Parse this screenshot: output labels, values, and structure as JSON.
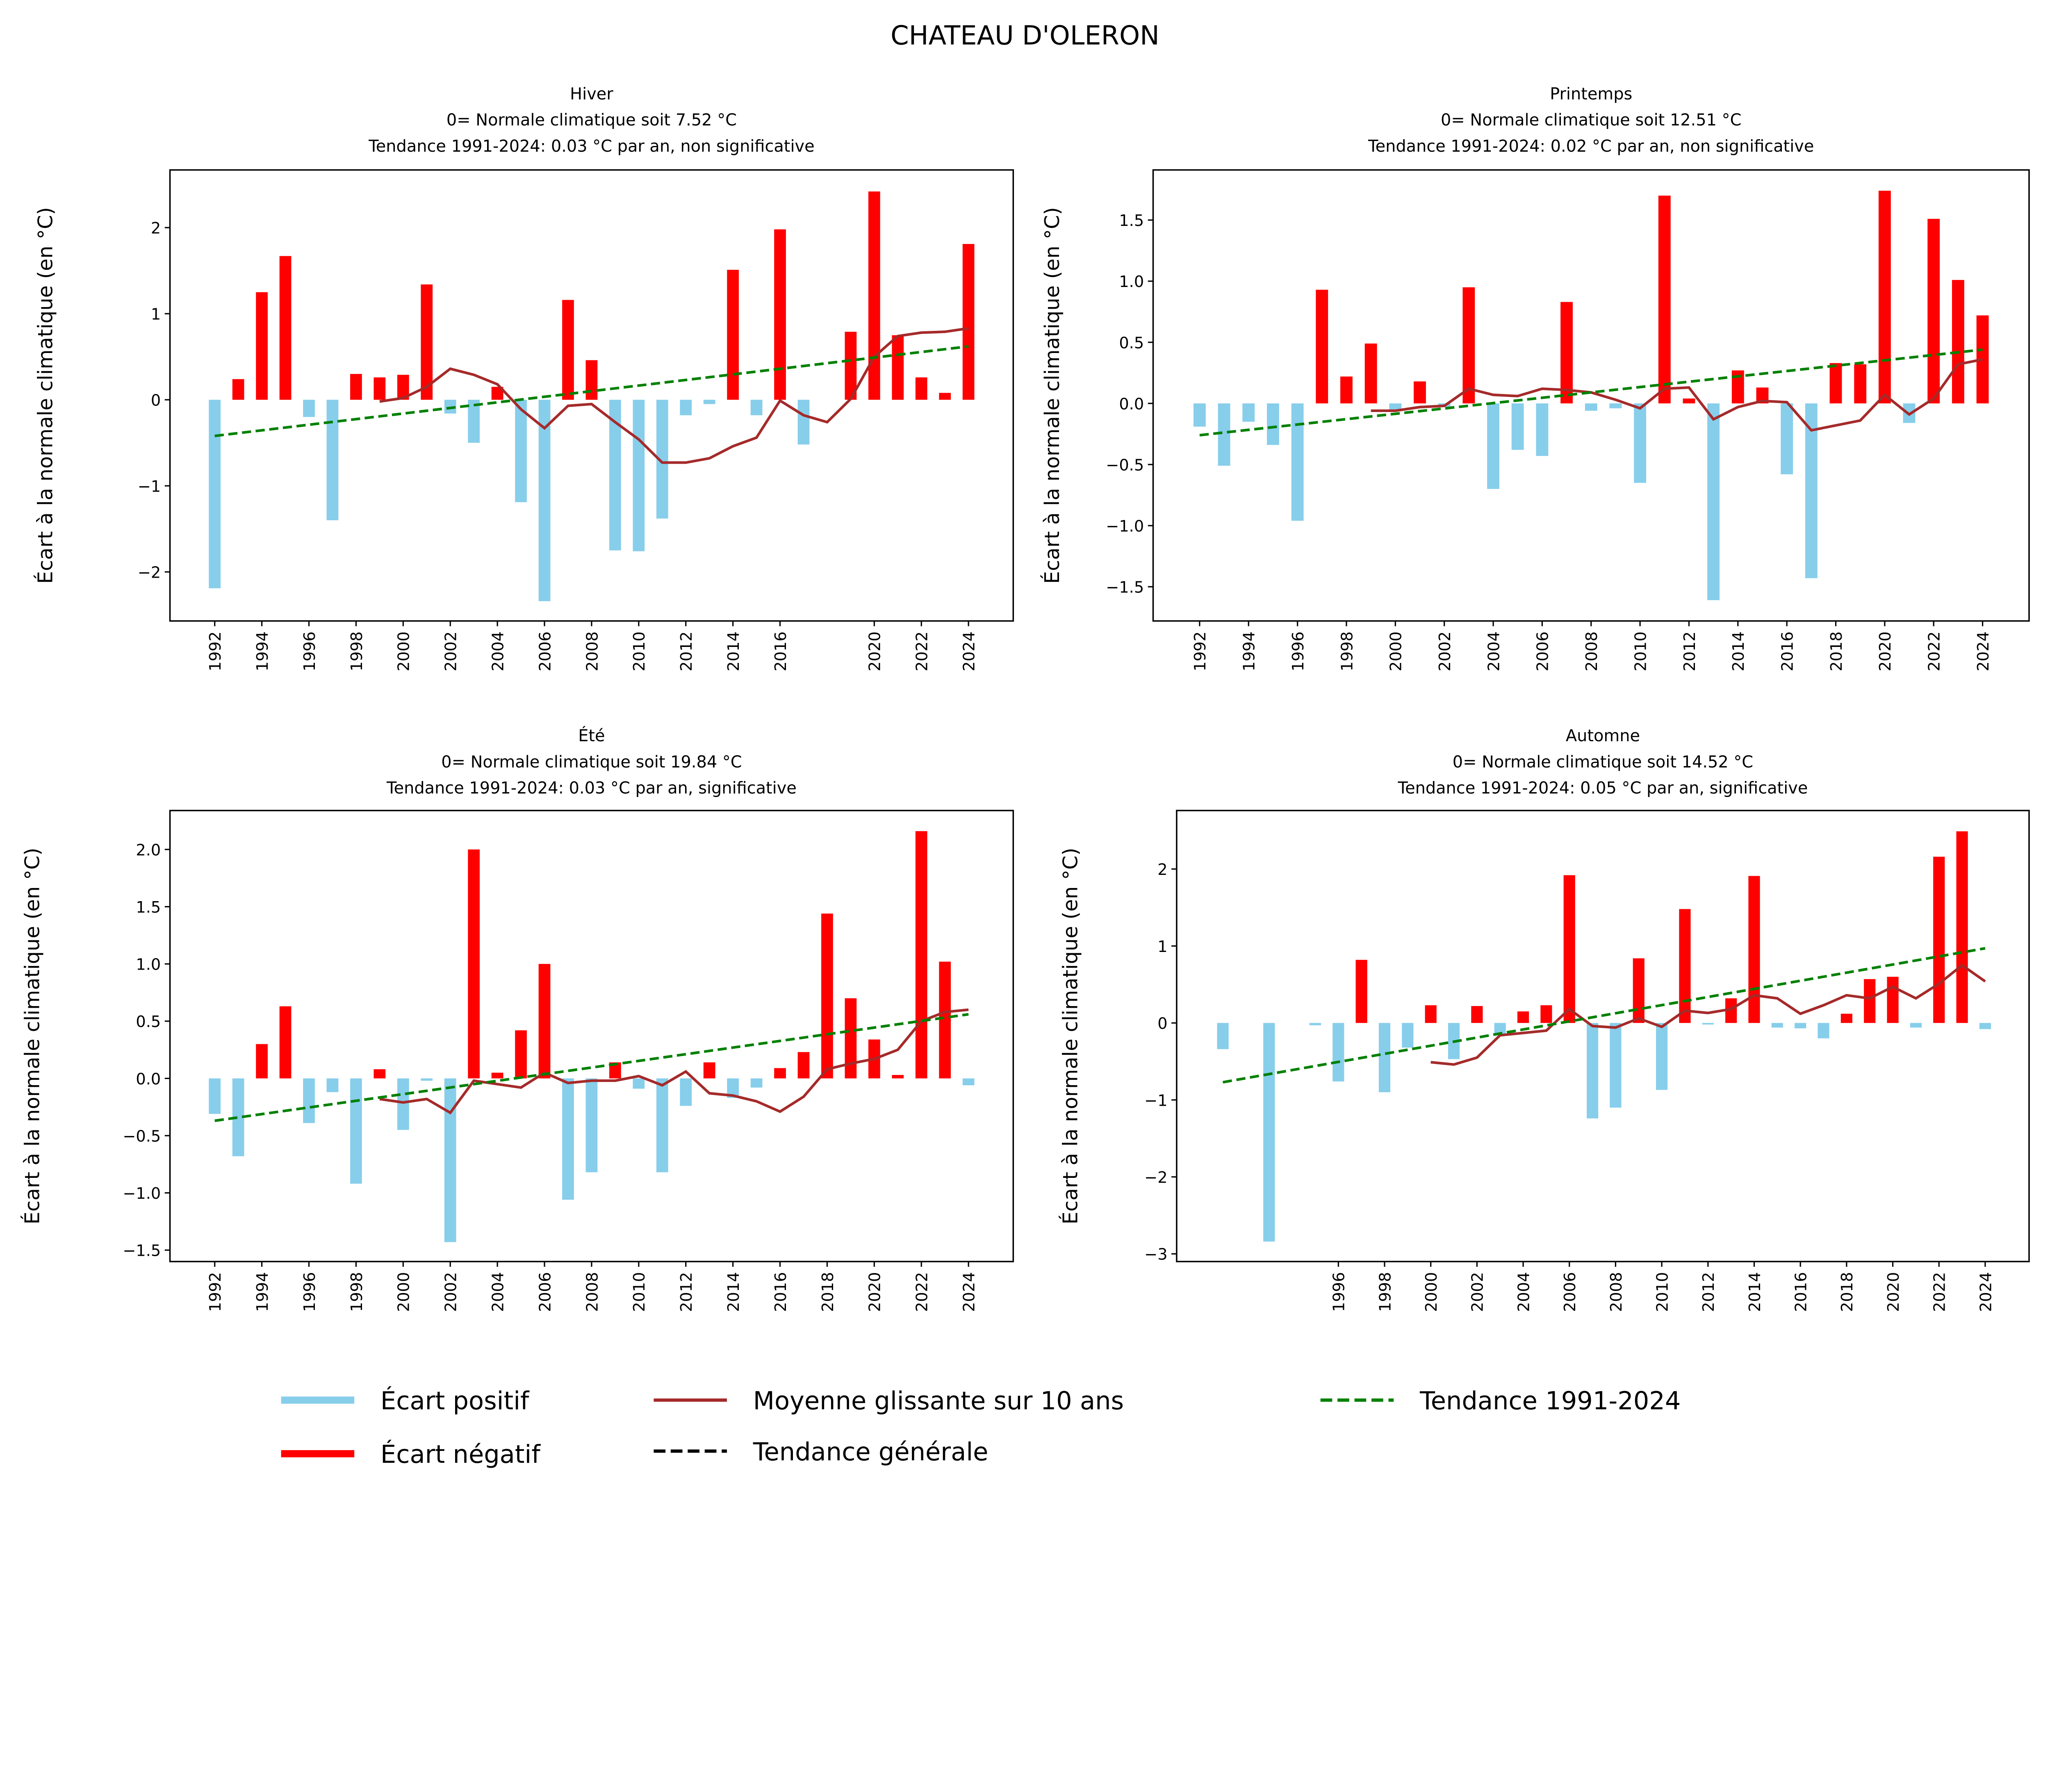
{
  "title": "CHATEAU D'OLERON",
  "colors": {
    "positive": "#87CEEB",
    "negative": "#FF0000",
    "moving_average": "#A52A2A",
    "trend": "#008000",
    "general_trend": "#000000"
  },
  "legend": {
    "placement": "bottom",
    "items": [
      {
        "label": "Écart positif",
        "color": "#87CEEB",
        "style": "thick-line"
      },
      {
        "label": "Écart négatif",
        "color": "#FF0000",
        "style": "thick-line"
      },
      {
        "label": "Moyenne glissante sur 10 ans",
        "color": "#A52A2A",
        "style": "line"
      },
      {
        "label": "Tendance générale",
        "color": "#000000",
        "style": "dashed"
      },
      {
        "label": "Tendance 1991-2024",
        "color": "#008000",
        "style": "dashed"
      }
    ]
  },
  "chart_data": [
    {
      "type": "bar",
      "title_lines": [
        "Hiver",
        "0= Normale climatique soit 7.52 °C",
        "Tendance 1991-2024: 0.03 °C par an, non significative"
      ],
      "ylabel": "Écart à la normale climatique (en °C)",
      "xlim": [
        1990.1,
        2025.9
      ],
      "ylim": [
        -2.57,
        2.67
      ],
      "y_ticks": [
        -2,
        -1,
        0,
        1,
        2
      ],
      "y_tick_labels": [
        "−2",
        "−1",
        "0",
        "1",
        "2"
      ],
      "x_ticks": [
        1992,
        1994,
        1996,
        1998,
        2000,
        2002,
        2004,
        2006,
        2008,
        2010,
        2012,
        2014,
        2016,
        2020,
        2022,
        2024
      ],
      "years": [
        1992,
        1993,
        1994,
        1995,
        1996,
        1997,
        1998,
        1999,
        2000,
        2001,
        2002,
        2003,
        2004,
        2005,
        2006,
        2007,
        2008,
        2009,
        2010,
        2011,
        2012,
        2013,
        2014,
        2015,
        2016,
        2017,
        2019,
        2020,
        2021,
        2022,
        2023,
        2024
      ],
      "values": [
        -2.19,
        0.24,
        1.25,
        1.67,
        -0.2,
        -1.4,
        0.3,
        0.26,
        0.29,
        1.34,
        -0.16,
        -0.5,
        0.15,
        -1.19,
        -2.34,
        1.16,
        0.46,
        -1.75,
        -1.76,
        -1.38,
        -0.18,
        -0.05,
        1.51,
        -0.18,
        1.98,
        -0.52,
        0.79,
        2.42,
        0.75,
        0.26,
        0.08,
        1.81
      ],
      "moving_average": {
        "years": [
          1999,
          2000,
          2001,
          2002,
          2003,
          2004,
          2005,
          2006,
          2007,
          2008,
          2009,
          2010,
          2011,
          2012,
          2013,
          2014,
          2015,
          2016,
          2017,
          2018,
          2019,
          2020,
          2021,
          2022,
          2023,
          2024
        ],
        "values": [
          -0.02,
          0.02,
          0.15,
          0.36,
          0.29,
          0.18,
          -0.11,
          -0.33,
          -0.07,
          -0.05,
          -0.26,
          -0.46,
          -0.73,
          -0.73,
          -0.68,
          -0.54,
          -0.44,
          -0.01,
          -0.18,
          -0.26,
          0.01,
          0.5,
          0.74,
          0.78,
          0.79,
          0.83
        ]
      },
      "trend": {
        "years": [
          1992,
          2024
        ],
        "values": [
          -0.42,
          0.62
        ]
      }
    },
    {
      "type": "bar",
      "title_lines": [
        "Printemps",
        "0= Normale climatique soit 12.51 °C",
        "Tendance 1991-2024: 0.02 °C par an, non significative"
      ],
      "ylabel": "Écart à la normale climatique (en °C)",
      "xlim": [
        1990.1,
        2025.9
      ],
      "ylim": [
        -1.78,
        1.91
      ],
      "y_ticks": [
        -1.5,
        -1.0,
        -0.5,
        0.0,
        0.5,
        1.0,
        1.5
      ],
      "y_tick_labels": [
        "−1.5",
        "−1.0",
        "−0.5",
        "0.0",
        "0.5",
        "1.0",
        "1.5"
      ],
      "x_ticks": [
        1992,
        1994,
        1996,
        1998,
        2000,
        2002,
        2004,
        2006,
        2008,
        2010,
        2012,
        2014,
        2016,
        2018,
        2020,
        2022,
        2024
      ],
      "years": [
        1992,
        1993,
        1994,
        1995,
        1996,
        1997,
        1998,
        1999,
        2000,
        2001,
        2002,
        2003,
        2004,
        2005,
        2006,
        2007,
        2008,
        2009,
        2010,
        2011,
        2012,
        2013,
        2014,
        2015,
        2016,
        2017,
        2018,
        2019,
        2020,
        2021,
        2022,
        2023,
        2024
      ],
      "values": [
        -0.19,
        -0.51,
        -0.15,
        -0.34,
        -0.96,
        0.93,
        0.22,
        0.49,
        -0.05,
        0.18,
        -0.03,
        0.95,
        -0.7,
        -0.38,
        -0.43,
        0.83,
        -0.06,
        -0.04,
        -0.65,
        1.7,
        0.04,
        -1.61,
        0.27,
        0.13,
        -0.58,
        -1.43,
        0.33,
        0.32,
        1.74,
        -0.16,
        1.51,
        1.01,
        0.72
      ],
      "moving_average": {
        "years": [
          1999,
          2000,
          2001,
          2002,
          2003,
          2004,
          2005,
          2006,
          2007,
          2008,
          2009,
          2010,
          2011,
          2012,
          2013,
          2014,
          2015,
          2016,
          2017,
          2018,
          2019,
          2020,
          2021,
          2022,
          2023,
          2024
        ],
        "values": [
          -0.06,
          -0.06,
          -0.03,
          -0.02,
          0.12,
          0.07,
          0.06,
          0.12,
          0.11,
          0.09,
          0.03,
          -0.04,
          0.12,
          0.13,
          -0.13,
          -0.03,
          0.02,
          0.01,
          -0.22,
          -0.18,
          -0.14,
          0.07,
          -0.09,
          0.04,
          0.32,
          0.36
        ]
      },
      "trend": {
        "years": [
          1992,
          2024
        ],
        "values": [
          -0.26,
          0.44
        ]
      }
    },
    {
      "type": "bar",
      "title_lines": [
        "Été",
        "0= Normale climatique soit 19.84 °C",
        "Tendance 1991-2024: 0.03 °C par an, significative"
      ],
      "ylabel": "Écart à la normale climatique (en °C)",
      "xlim": [
        1990.1,
        2025.9
      ],
      "ylim": [
        -1.6,
        2.34
      ],
      "y_ticks": [
        -1.5,
        -1.0,
        -0.5,
        0.0,
        0.5,
        1.0,
        1.5,
        2.0
      ],
      "y_tick_labels": [
        "−1.5",
        "−1.0",
        "−0.5",
        "0.0",
        "0.5",
        "1.0",
        "1.5",
        "2.0"
      ],
      "x_ticks": [
        1992,
        1994,
        1996,
        1998,
        2000,
        2002,
        2004,
        2006,
        2008,
        2010,
        2012,
        2014,
        2016,
        2018,
        2020,
        2022,
        2024
      ],
      "years": [
        1992,
        1993,
        1994,
        1995,
        1996,
        1997,
        1998,
        1999,
        2000,
        2001,
        2002,
        2003,
        2004,
        2005,
        2006,
        2007,
        2008,
        2009,
        2010,
        2011,
        2012,
        2013,
        2014,
        2015,
        2016,
        2017,
        2018,
        2019,
        2020,
        2021,
        2022,
        2023,
        2024
      ],
      "values": [
        -0.31,
        -0.68,
        0.3,
        0.63,
        -0.39,
        -0.12,
        -0.92,
        0.08,
        -0.45,
        -0.02,
        -1.43,
        2.0,
        0.05,
        0.42,
        1.0,
        -1.06,
        -0.82,
        0.14,
        -0.09,
        -0.82,
        -0.24,
        0.14,
        -0.17,
        -0.08,
        0.09,
        0.23,
        1.44,
        0.7,
        0.34,
        0.03,
        2.16,
        1.02,
        -0.06
      ],
      "moving_average": {
        "years": [
          1999,
          2000,
          2001,
          2002,
          2003,
          2004,
          2005,
          2006,
          2007,
          2008,
          2009,
          2010,
          2011,
          2012,
          2013,
          2014,
          2015,
          2016,
          2017,
          2018,
          2019,
          2020,
          2021,
          2022,
          2023,
          2024
        ],
        "values": [
          -0.18,
          -0.21,
          -0.18,
          -0.3,
          -0.02,
          -0.05,
          -0.08,
          0.05,
          -0.04,
          -0.02,
          -0.02,
          0.02,
          -0.06,
          0.06,
          -0.13,
          -0.15,
          -0.2,
          -0.29,
          -0.16,
          0.08,
          0.13,
          0.17,
          0.25,
          0.5,
          0.58,
          0.6
        ]
      },
      "trend": {
        "years": [
          1992,
          2024
        ],
        "values": [
          -0.37,
          0.56
        ]
      }
    },
    {
      "type": "bar",
      "title_lines": [
        "Automne",
        "0= Normale climatique soit 14.52 °C",
        "Tendance 1991-2024: 0.05 °C par an, significative"
      ],
      "ylabel": "Écart à la normale climatique (en °C)",
      "xlim": [
        1989.0,
        2025.9
      ],
      "ylim": [
        -3.1,
        2.76
      ],
      "y_ticks": [
        -3,
        -2,
        -1,
        0,
        1,
        2
      ],
      "y_tick_labels": [
        "−3",
        "−2",
        "−1",
        "0",
        "1",
        "2"
      ],
      "x_ticks": [
        1996,
        1998,
        2000,
        2002,
        2004,
        2006,
        2008,
        2010,
        2012,
        2014,
        2016,
        2018,
        2020,
        2022,
        2024
      ],
      "years": [
        1991,
        1993,
        1995,
        1996,
        1997,
        1998,
        1999,
        2000,
        2001,
        2002,
        2003,
        2004,
        2005,
        2006,
        2007,
        2008,
        2009,
        2010,
        2011,
        2012,
        2013,
        2014,
        2015,
        2016,
        2017,
        2018,
        2019,
        2020,
        2021,
        2022,
        2023,
        2024
      ],
      "values": [
        -0.34,
        -2.84,
        -0.03,
        -0.76,
        0.82,
        -0.9,
        -0.32,
        0.23,
        -0.47,
        0.22,
        -0.16,
        0.15,
        0.23,
        1.92,
        -1.24,
        -1.1,
        0.84,
        -0.87,
        1.48,
        -0.02,
        0.32,
        1.91,
        -0.06,
        -0.07,
        -0.2,
        0.12,
        0.57,
        0.6,
        -0.06,
        2.16,
        2.49,
        -0.08
      ],
      "moving_average": {
        "years": [
          2000,
          2001,
          2002,
          2003,
          2004,
          2005,
          2006,
          2007,
          2008,
          2009,
          2010,
          2011,
          2012,
          2013,
          2014,
          2015,
          2016,
          2017,
          2018,
          2019,
          2020,
          2021,
          2022,
          2023,
          2024
        ],
        "values": [
          -0.51,
          -0.54,
          -0.45,
          -0.16,
          -0.13,
          -0.1,
          0.18,
          -0.04,
          -0.06,
          0.06,
          -0.05,
          0.16,
          0.13,
          0.18,
          0.36,
          0.32,
          0.12,
          0.23,
          0.36,
          0.32,
          0.47,
          0.32,
          0.51,
          0.75,
          0.54
        ]
      },
      "trend": {
        "years": [
          1991,
          2024
        ],
        "values": [
          -0.77,
          0.97
        ]
      }
    }
  ]
}
